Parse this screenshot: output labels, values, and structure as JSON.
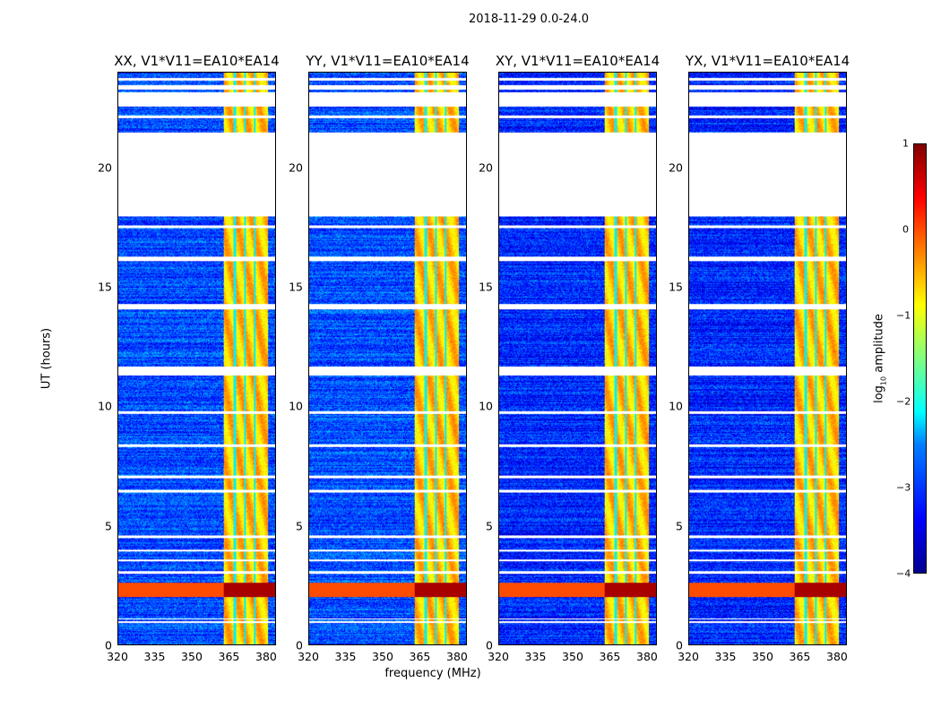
{
  "chart_data": {
    "type": "heatmap",
    "title": "2018-11-29 0.0-24.0",
    "panels": [
      {
        "title": "XX, V1*V11=EA10*EA14"
      },
      {
        "title": "YY, V1*V11=EA10*EA14"
      },
      {
        "title": "XY, V1*V11=EA10*EA14"
      },
      {
        "title": "YX, V1*V11=EA10*EA14"
      }
    ],
    "xlabel": "frequency (MHz)",
    "ylabel": "UT (hours)",
    "xlim": [
      320,
      384
    ],
    "ylim": [
      0,
      24
    ],
    "xticks": [
      "320",
      "335",
      "350",
      "365",
      "380"
    ],
    "yticks": [
      "0",
      "5",
      "10",
      "15",
      "20"
    ],
    "colorbar": {
      "label": "log10 amplitude",
      "label_main": "log",
      "label_sub": "10",
      "label_rest": " amplitude",
      "range": [
        -4,
        1
      ],
      "ticks": [
        "1",
        "0",
        "−1",
        "−2",
        "−3",
        "−4"
      ],
      "colormap": "jet"
    },
    "background_level_log10": -3.0,
    "rfi_band_mhz": [
      363,
      381
    ],
    "rfi_band_level_log10": -0.6,
    "rfi_gaps_mhz": [
      367.5,
      371.5,
      375.5
    ],
    "strong_rfi_hours": [
      2.0,
      2.6
    ],
    "strong_rfi_level_log10": 0.8,
    "missing_hours": [
      [
        18.0,
        21.5
      ],
      [
        22.6,
        23.2
      ],
      [
        23.3,
        23.5
      ],
      [
        0.9,
        1.0
      ],
      [
        1.05,
        1.1
      ],
      [
        3.0,
        3.1
      ],
      [
        3.5,
        3.6
      ],
      [
        3.9,
        4.0
      ],
      [
        4.5,
        4.6
      ],
      [
        6.4,
        6.5
      ],
      [
        7.0,
        7.1
      ],
      [
        8.3,
        8.4
      ],
      [
        9.7,
        9.8
      ],
      [
        11.3,
        11.7
      ],
      [
        14.1,
        14.3
      ],
      [
        16.1,
        16.3
      ],
      [
        17.5,
        17.6
      ],
      [
        22.1,
        22.2
      ],
      [
        23.7,
        23.8
      ]
    ]
  }
}
